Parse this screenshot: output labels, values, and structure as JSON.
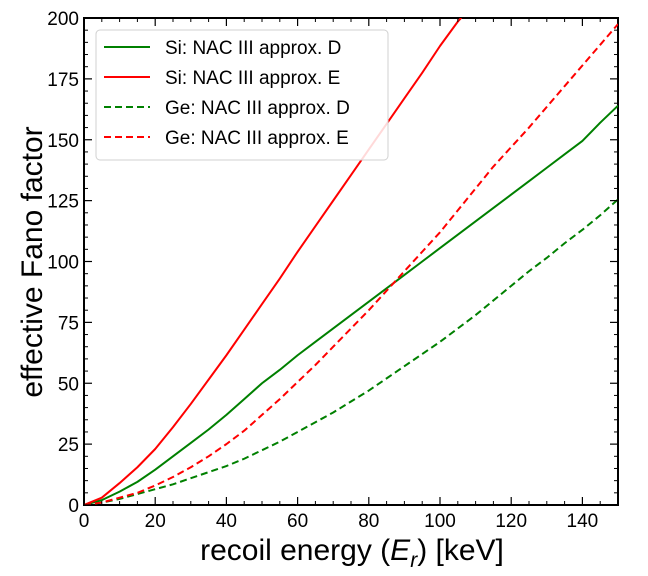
{
  "chart_data": {
    "type": "line",
    "xlabel_prefix": "recoil energy (",
    "xlabel_var": "E",
    "xlabel_sub": "r",
    "xlabel_suffix": ") [keV]",
    "ylabel": "effective Fano factor",
    "xlim": [
      0,
      150
    ],
    "ylim": [
      0,
      200
    ],
    "x_ticks": [
      0,
      20,
      40,
      60,
      80,
      100,
      120,
      140
    ],
    "y_ticks": [
      0,
      25,
      50,
      75,
      100,
      125,
      150,
      175,
      200
    ],
    "grid": false,
    "legend_position": "top-left",
    "series": [
      {
        "name": "Si: NAC III approx. D",
        "color": "#008000",
        "dash": "solid",
        "x": [
          0,
          5,
          10,
          15,
          20,
          25,
          30,
          35,
          40,
          45,
          50,
          55,
          60,
          65,
          70,
          75,
          80,
          85,
          90,
          95,
          100,
          105,
          110,
          115,
          120,
          125,
          130,
          135,
          140,
          145,
          150
        ],
        "y": [
          0,
          2,
          5.5,
          9.5,
          14.5,
          20,
          25.5,
          31,
          37,
          43.5,
          50,
          55.5,
          61.5,
          67,
          72.5,
          78,
          83.5,
          89,
          94.5,
          100,
          105.5,
          111,
          116.5,
          122,
          127.5,
          133,
          138.5,
          144,
          149.5,
          157,
          164
        ]
      },
      {
        "name": "Si: NAC III approx. E",
        "color": "#ff0000",
        "dash": "solid",
        "x": [
          0,
          5,
          10,
          15,
          20,
          25,
          30,
          35,
          40,
          45,
          50,
          55,
          60,
          65,
          70,
          75,
          80,
          85,
          90,
          95,
          100,
          105,
          106.5
        ],
        "y": [
          0,
          3,
          9,
          15.5,
          23,
          32,
          41.5,
          51.5,
          61.5,
          72,
          82.5,
          93,
          104,
          114.5,
          125,
          135.5,
          146,
          156.5,
          167,
          177.5,
          188.5,
          198.5,
          201
        ]
      },
      {
        "name": "Ge: NAC III approx. D",
        "color": "#008000",
        "dash": "dashed",
        "x": [
          0,
          5,
          10,
          15,
          20,
          25,
          30,
          35,
          40,
          45,
          50,
          55,
          60,
          65,
          70,
          75,
          80,
          85,
          90,
          95,
          100,
          105,
          110,
          115,
          120,
          125,
          130,
          135,
          140,
          145,
          150
        ],
        "y": [
          0,
          1,
          2.5,
          4.5,
          6.5,
          8.5,
          11,
          13.5,
          16,
          19,
          22.5,
          26,
          30,
          34,
          38,
          42.5,
          47,
          52,
          57,
          62,
          67,
          72.5,
          78,
          84,
          90,
          96,
          101.5,
          107.5,
          113,
          119,
          125.5
        ]
      },
      {
        "name": "Ge: NAC III approx. E",
        "color": "#ff0000",
        "dash": "dashed",
        "x": [
          0,
          5,
          10,
          15,
          20,
          25,
          30,
          35,
          40,
          45,
          50,
          55,
          60,
          65,
          70,
          75,
          80,
          85,
          90,
          95,
          100,
          105,
          110,
          115,
          120,
          125,
          130,
          135,
          140,
          145,
          150
        ],
        "y": [
          0,
          1,
          3,
          5,
          8,
          11.5,
          15.5,
          20,
          25,
          30.5,
          37,
          43.5,
          50.5,
          57.5,
          65,
          72.5,
          80,
          88,
          96,
          104,
          112,
          121,
          130,
          139,
          147,
          155,
          163.5,
          172,
          180.5,
          189,
          197.5
        ]
      }
    ]
  }
}
